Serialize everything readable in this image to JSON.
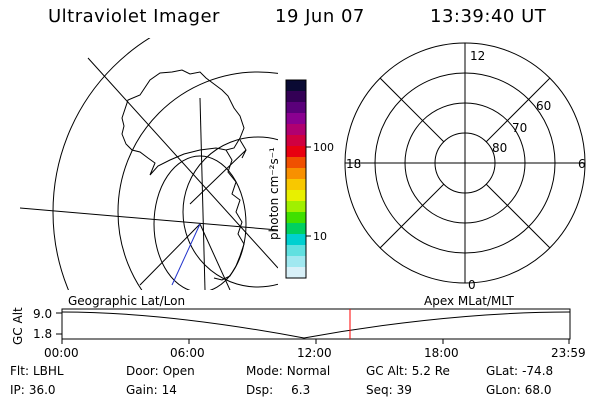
{
  "header": {
    "instrument": "Ultraviolet Imager",
    "date": "19 Jun 07",
    "time": "13:39:40 UT"
  },
  "colorbar": {
    "unit_label": "photon cm⁻²s⁻¹",
    "ticks": [
      "100",
      "10"
    ],
    "colors": [
      "#0a0a33",
      "#330055",
      "#5a007a",
      "#8a0090",
      "#b00070",
      "#d00040",
      "#e80010",
      "#f05000",
      "#f89000",
      "#f8c800",
      "#e8f000",
      "#a0f000",
      "#40e000",
      "#00d060",
      "#00d0d0",
      "#60e0e0",
      "#a0e8f0",
      "#d8f0f8"
    ]
  },
  "polar_plot": {
    "mlt_labels": {
      "top": "12",
      "bottom": "0",
      "left": "18",
      "right": "6"
    },
    "lat_labels": [
      "60",
      "70",
      "80"
    ]
  },
  "orbit_plot": {
    "left_label": "Geographic Lat/Lon",
    "right_label": "Apex MLat/MLT",
    "y_axis_label": "GC Alt",
    "y_ticks": [
      "9.0",
      "1.8"
    ],
    "x_ticks": [
      "00:00",
      "06:00",
      "12:00",
      "18:00",
      "23:59"
    ],
    "current_marker_color": "#ff0000"
  },
  "status": {
    "filter": {
      "label": "Flt:",
      "value": "LBHL"
    },
    "ip": {
      "label": "IP:",
      "value": "36.0"
    },
    "door": {
      "label": "Door:",
      "value": "Open"
    },
    "gain": {
      "label": "Gain:",
      "value": "14"
    },
    "mode": {
      "label": "Mode:",
      "value": "Normal"
    },
    "dsp": {
      "label": "Dsp:",
      "value": "6.3"
    },
    "gc_alt": {
      "label": "GC Alt:",
      "value": "5.2 Re"
    },
    "seq": {
      "label": "Seq:",
      "value": "39"
    },
    "glat": {
      "label": "GLat:",
      "value": "-74.8"
    },
    "glon": {
      "label": "GLon:",
      "value": "68.0"
    }
  }
}
